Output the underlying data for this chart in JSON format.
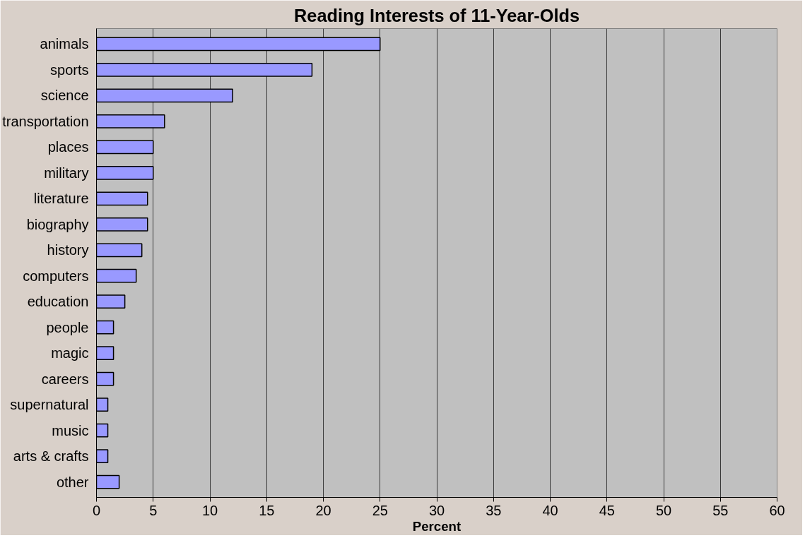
{
  "chart_data": {
    "type": "bar",
    "orientation": "horizontal",
    "title": "Reading Interests of 11-Year-Olds",
    "xlabel": "Percent",
    "categories": [
      "animals",
      "sports",
      "science",
      "transportation",
      "places",
      "military",
      "literature",
      "biography",
      "history",
      "computers",
      "education",
      "people",
      "magic",
      "careers",
      "supernatural",
      "music",
      "arts & crafts",
      "other"
    ],
    "values": [
      25,
      19,
      12,
      6,
      5,
      5,
      4.5,
      4.5,
      4,
      3.5,
      2.5,
      1.5,
      1.5,
      1.5,
      1,
      1,
      1,
      2
    ],
    "color": "#9999ff",
    "xlim": [
      0,
      60
    ],
    "xticks": [
      0,
      5,
      10,
      15,
      20,
      25,
      30,
      35,
      40,
      45,
      50,
      55,
      60
    ],
    "grid": "x"
  }
}
